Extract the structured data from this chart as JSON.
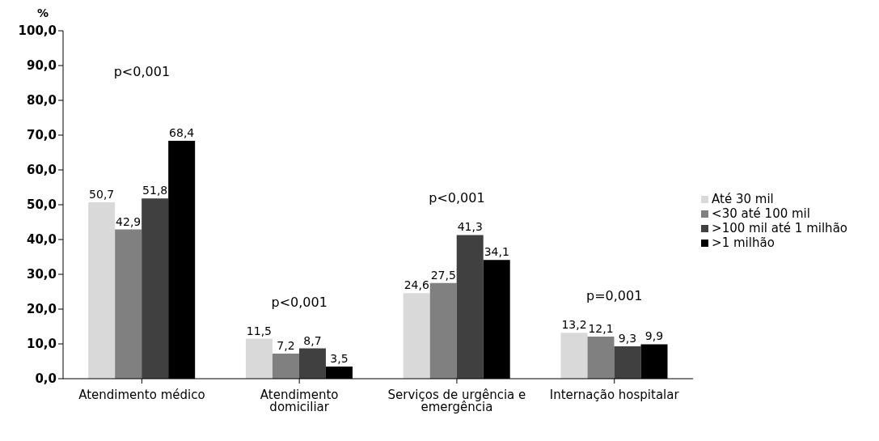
{
  "chart_data": {
    "type": "bar",
    "ylabel": "%",
    "categories": [
      "Atendimento médico",
      "Atendimento domiciliar",
      "Serviços de urgência e emergência",
      "Internação hospitalar"
    ],
    "series": [
      {
        "name": "Até 30 mil",
        "color": "#d9d9d9",
        "values": [
          50.7,
          11.5,
          24.6,
          13.2
        ],
        "value_labels": [
          "50,7",
          "11,5",
          "24,6",
          "13,2"
        ]
      },
      {
        "name": "<30 até 100 mil",
        "color": "#808080",
        "values": [
          42.9,
          7.2,
          27.5,
          12.1
        ],
        "value_labels": [
          "42,9",
          "7,2",
          "27,5",
          "12,1"
        ]
      },
      {
        "name": ">100 mil até 1 milhão",
        "color": "#404040",
        "values": [
          51.8,
          8.7,
          41.3,
          9.3
        ],
        "value_labels": [
          "51,8",
          "8,7",
          "41,3",
          "9,3"
        ]
      },
      {
        "name": ">1 milhão",
        "color": "#000000",
        "values": [
          68.4,
          3.5,
          34.1,
          9.9
        ],
        "value_labels": [
          "68,4",
          "3,5",
          "34,1",
          "9,9"
        ]
      }
    ],
    "ylim": [
      0,
      100
    ],
    "yticks": [
      {
        "value": 0,
        "label": "0,0"
      },
      {
        "value": 10,
        "label": "10,0"
      },
      {
        "value": 20,
        "label": "20,0"
      },
      {
        "value": 30,
        "label": "30,0"
      },
      {
        "value": 40,
        "label": "40,0"
      },
      {
        "value": 50,
        "label": "50,0"
      },
      {
        "value": 60,
        "label": "60,0"
      },
      {
        "value": 70,
        "label": "70,0"
      },
      {
        "value": 80,
        "label": "80,0"
      },
      {
        "value": 90,
        "label": "90,0"
      },
      {
        "value": 100,
        "label": "100,0"
      }
    ],
    "annotations": [
      "p<0,001",
      "p<0,001",
      "p<0,001",
      "p=0,001"
    ],
    "grid": false,
    "legend": "right"
  }
}
